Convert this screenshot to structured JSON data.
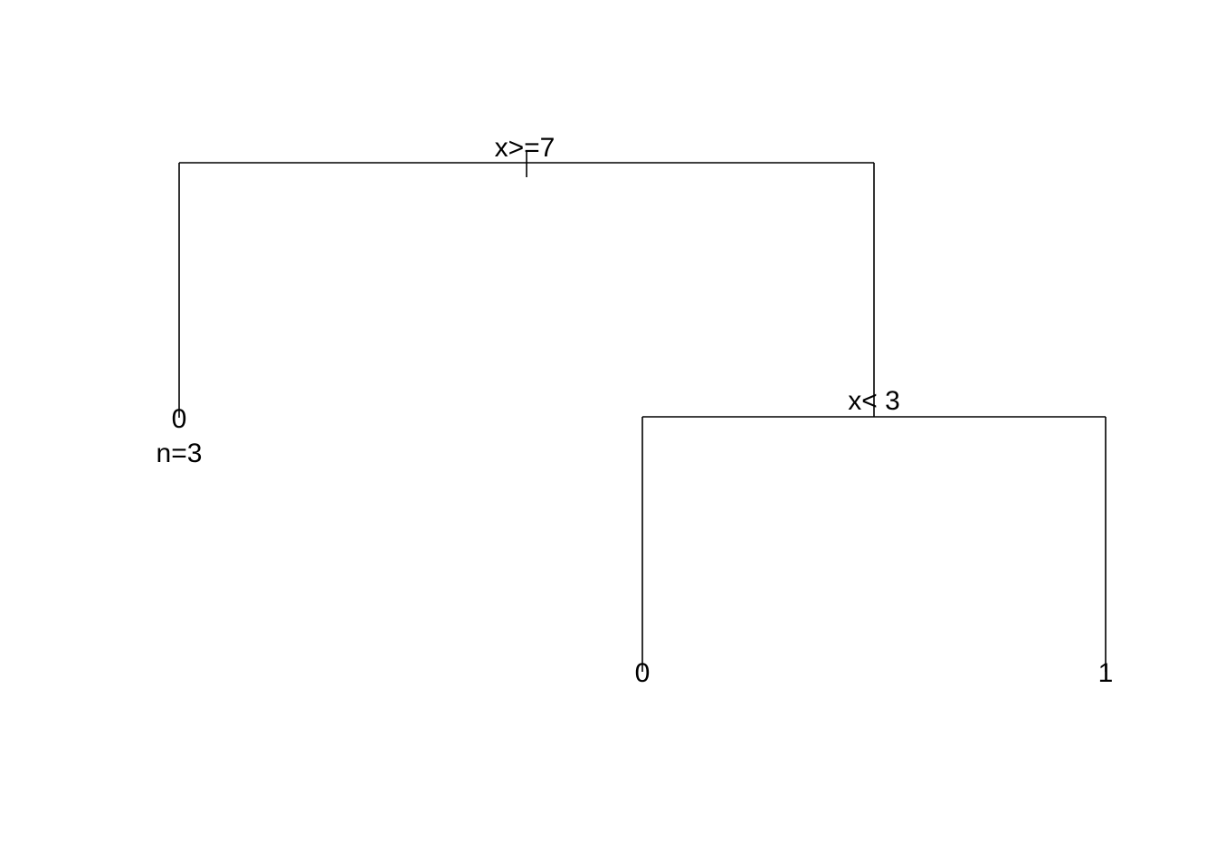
{
  "tree": {
    "root_split": "x>=7",
    "left_leaf": {
      "class": "0",
      "count_label": "n=3"
    },
    "right_split": "x< 3",
    "right_left_leaf": {
      "class": "0"
    },
    "right_right_leaf": {
      "class": "1"
    }
  },
  "colors": {
    "line": "#000000",
    "text": "#000000",
    "background": "#ffffff"
  }
}
